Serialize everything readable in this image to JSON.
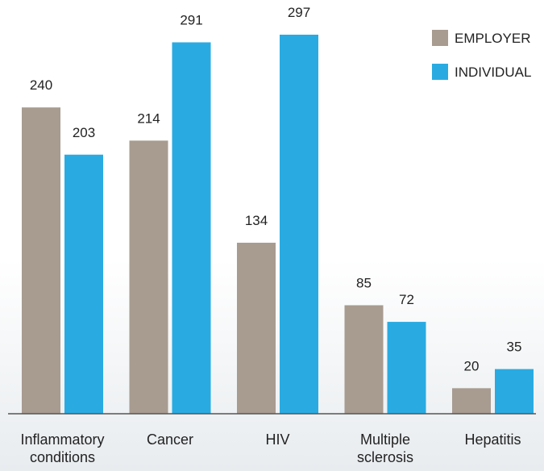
{
  "chart_data": {
    "type": "bar",
    "categories": [
      "Inflammatory conditions",
      "Cancer",
      "HIV",
      "Multiple sclerosis",
      "Hepatitis"
    ],
    "series": [
      {
        "name": "EMPLOYER",
        "color": "#a89b90",
        "values": [
          240,
          214,
          134,
          85,
          20
        ]
      },
      {
        "name": "INDIVIDUAL",
        "color": "#29abe2",
        "values": [
          203,
          291,
          297,
          72,
          35
        ]
      }
    ],
    "legend": "top-right"
  }
}
